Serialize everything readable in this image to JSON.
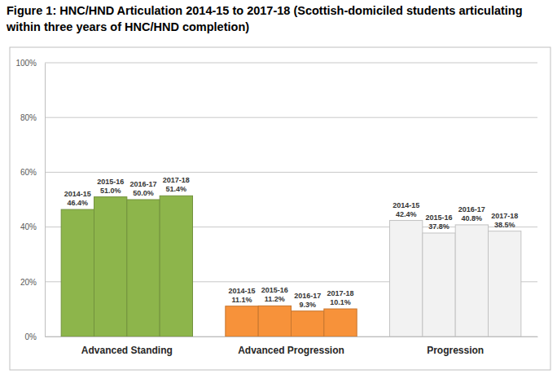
{
  "chart_data": {
    "type": "bar",
    "title": "Figure 1: HNC/HND Articulation 2014-15 to 2017-18 (Scottish-domiciled students articulating within three years of HNC/HND completion)",
    "categories": [
      "Advanced Standing",
      "Advanced Progression",
      "Progression"
    ],
    "series": [
      {
        "name": "2014-15",
        "colors": [
          "#8db54b",
          "#f7923a",
          "#f2f2f2"
        ],
        "values": [
          46.4,
          11.1,
          42.4
        ],
        "value_labels": [
          "46.4%",
          "11.1%",
          "42.4%"
        ]
      },
      {
        "name": "2015-16",
        "colors": [
          "#8db54b",
          "#f7923a",
          "#f2f2f2"
        ],
        "values": [
          51.0,
          11.2,
          37.8
        ],
        "value_labels": [
          "51.0%",
          "11.2%",
          "37.8%"
        ]
      },
      {
        "name": "2016-17",
        "colors": [
          "#8db54b",
          "#f7923a",
          "#f2f2f2"
        ],
        "values": [
          50.0,
          9.3,
          40.8
        ],
        "value_labels": [
          "50.0%",
          "9.3%",
          "40.8%"
        ]
      },
      {
        "name": "2017-18",
        "colors": [
          "#8db54b",
          "#f7923a",
          "#f2f2f2"
        ],
        "values": [
          51.4,
          10.1,
          38.5
        ],
        "value_labels": [
          "51.4%",
          "10.1%",
          "38.5%"
        ]
      }
    ],
    "ylim": [
      0,
      100
    ],
    "yticks": [
      {
        "value": 0,
        "label": "0%"
      },
      {
        "value": 20,
        "label": "20%"
      },
      {
        "value": 40,
        "label": "40%"
      },
      {
        "value": 60,
        "label": "60%"
      },
      {
        "value": 80,
        "label": "80%"
      },
      {
        "value": 100,
        "label": "100%"
      }
    ],
    "grid": true,
    "data_labels": true
  }
}
